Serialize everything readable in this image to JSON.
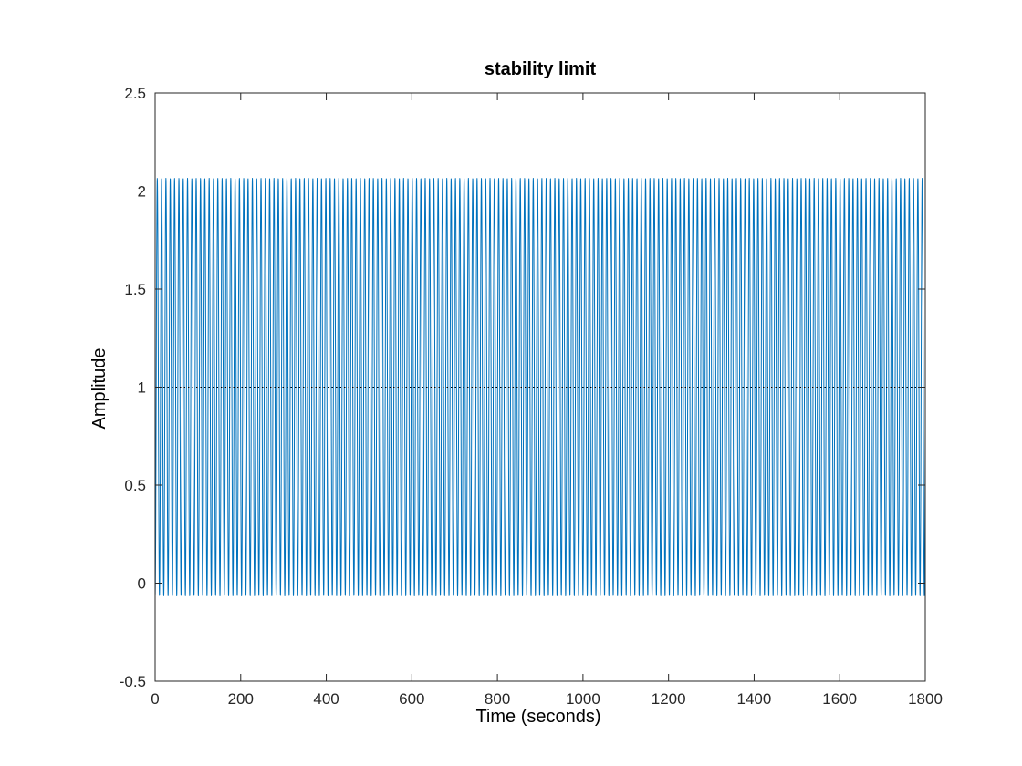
{
  "chart_data": {
    "type": "line",
    "title": "stability limit",
    "xlabel": "Time (seconds)",
    "ylabel": "Amplitude",
    "xlim": [
      0,
      1800
    ],
    "ylim": [
      -0.5,
      2.5
    ],
    "xticks": [
      0,
      200,
      400,
      600,
      800,
      1000,
      1200,
      1400,
      1600,
      1800
    ],
    "yticks": [
      -0.5,
      0,
      0.5,
      1,
      1.5,
      2,
      2.5
    ],
    "xtick_labels": [
      "0",
      "200",
      "400",
      "600",
      "800",
      "1000",
      "1200",
      "1400",
      "1600",
      "1800"
    ],
    "ytick_labels": [
      "-0.5",
      "0",
      "0.5",
      "1",
      "1.5",
      "2",
      "2.5"
    ],
    "grid": false,
    "series": [
      {
        "color": "#0072BD",
        "style": "solid",
        "mean": 1.0,
        "amplitude": 1.065,
        "period": 10.1,
        "x_start": 0,
        "x_end": 1800
      },
      {
        "color": "#000000",
        "style": "dotted",
        "x": [
          0,
          1800
        ],
        "y": [
          1,
          1
        ]
      }
    ]
  }
}
